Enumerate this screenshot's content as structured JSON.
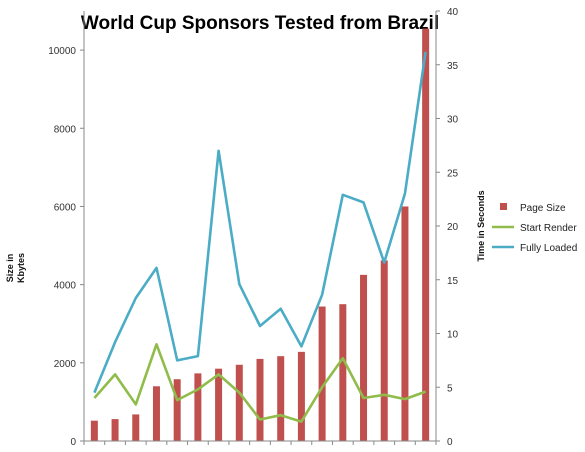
{
  "chart_data": {
    "type": "bar+line",
    "title": "World Cup Sponsors Tested from Brazil",
    "ylabel_left": [
      "Size in",
      "Kbytes"
    ],
    "ylabel_right": "Time in Seconds",
    "left_axis": {
      "min": 0,
      "max": 11000,
      "ticks": [
        0,
        2000,
        4000,
        6000,
        8000,
        10000
      ]
    },
    "right_axis": {
      "min": 0,
      "max": 40,
      "ticks": [
        0,
        5,
        10,
        15,
        20,
        25,
        30,
        35,
        40
      ]
    },
    "categories": [
      "1",
      "2",
      "3",
      "4",
      "5",
      "6",
      "7",
      "8",
      "9",
      "10",
      "11",
      "12",
      "13",
      "14",
      "15",
      "16",
      "17"
    ],
    "legend_position": "right",
    "series": [
      {
        "name": "Page Size",
        "type": "bar",
        "axis": "left",
        "color": "#c0504d",
        "values": [
          520,
          560,
          680,
          1400,
          1580,
          1730,
          1850,
          1950,
          2100,
          2170,
          2280,
          3440,
          3500,
          4250,
          4620,
          6000,
          10550
        ]
      },
      {
        "name": "Start Render",
        "type": "line",
        "axis": "right",
        "color": "#8fbc4a",
        "values": [
          4.0,
          6.2,
          3.4,
          9.0,
          3.8,
          4.8,
          6.2,
          4.5,
          2.0,
          2.4,
          1.8,
          5.0,
          7.7,
          4.0,
          4.3,
          3.9,
          4.6
        ]
      },
      {
        "name": "Fully Loaded",
        "type": "line",
        "axis": "right",
        "color": "#4bacc6",
        "values": [
          4.5,
          9.2,
          13.3,
          16.1,
          7.5,
          7.9,
          27.0,
          14.6,
          10.7,
          12.3,
          8.8,
          13.6,
          22.9,
          22.2,
          16.6,
          23.0,
          36.2
        ]
      }
    ]
  }
}
